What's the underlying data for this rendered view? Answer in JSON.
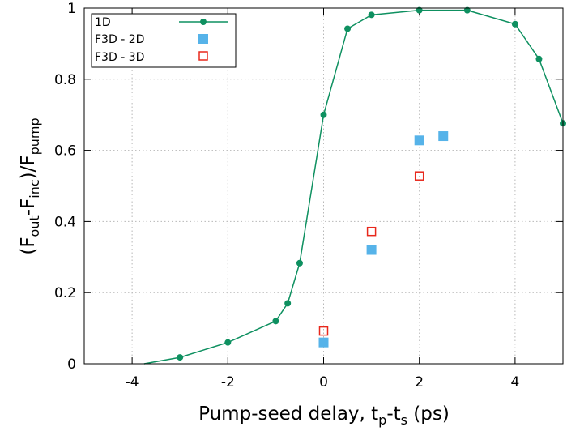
{
  "chart_data": {
    "type": "scatter",
    "xlabel": "Pump-seed delay, t_p-t_s (ps)",
    "xlabel_parts": {
      "prefix": "Pump-seed delay, t",
      "sub1": "p",
      "mid": "-t",
      "sub2": "s",
      "suffix": " (ps)"
    },
    "ylabel": "(F_out-F_inc)/F_pump",
    "ylabel_parts": {
      "open": "(F",
      "sub1": "out",
      "mid": "-F",
      "sub2": "inc",
      "close": ")/F",
      "sub3": "pump"
    },
    "xlim": [
      -5,
      5
    ],
    "ylim": [
      0,
      1
    ],
    "xticks": [
      -4,
      -2,
      0,
      2,
      4
    ],
    "xtick_labels": [
      "-4",
      "-2",
      "0",
      "2",
      "4"
    ],
    "yticks": [
      0,
      0.2,
      0.4,
      0.6,
      0.8,
      1
    ],
    "ytick_labels": [
      "0",
      "0.2",
      "0.4",
      "0.6",
      "0.8",
      "1"
    ],
    "grid": true,
    "legend_position": "top-left",
    "series": [
      {
        "name": "1D",
        "style": "line+markers",
        "color": "#0e9060",
        "x": [
          -3.75,
          -3,
          -2,
          -1,
          -0.75,
          -0.5,
          0,
          0.5,
          1,
          2,
          3,
          4,
          4.5,
          5
        ],
        "y": [
          0.0,
          0.018,
          0.06,
          0.12,
          0.17,
          0.283,
          0.7,
          0.942,
          0.981,
          0.994,
          0.994,
          0.955,
          0.857,
          0.676
        ],
        "markers": [
          false,
          true,
          true,
          true,
          true,
          true,
          true,
          true,
          true,
          true,
          true,
          true,
          true,
          true
        ]
      },
      {
        "name": "F3D - 2D",
        "style": "filled-square",
        "color": "#56b3e9",
        "x": [
          0,
          1,
          2,
          2.5
        ],
        "y": [
          0.06,
          0.32,
          0.628,
          0.64
        ]
      },
      {
        "name": "F3D - 3D",
        "style": "open-square",
        "color": "#e8281c",
        "x": [
          0,
          1,
          2
        ],
        "y": [
          0.092,
          0.372,
          0.528
        ]
      }
    ]
  }
}
